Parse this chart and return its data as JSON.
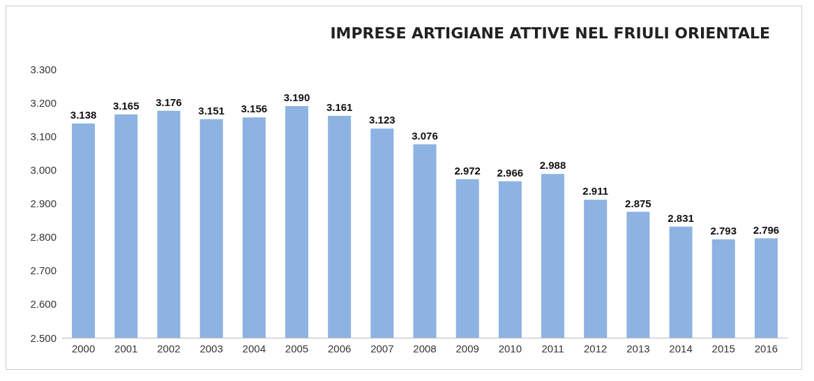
{
  "chart_data": {
    "type": "bar",
    "title": "IMPRESE ARTIGIANE ATTIVE NEL FRIULI ORIENTALE",
    "categories": [
      "2000",
      "2001",
      "2002",
      "2003",
      "2004",
      "2005",
      "2006",
      "2007",
      "2008",
      "2009",
      "2010",
      "2011",
      "2012",
      "2013",
      "2014",
      "2015",
      "2016"
    ],
    "values": [
      3138,
      3165,
      3176,
      3151,
      3156,
      3190,
      3161,
      3123,
      3076,
      2972,
      2966,
      2988,
      2911,
      2875,
      2831,
      2793,
      2796
    ],
    "value_labels": [
      "3.138",
      "3.165",
      "3.176",
      "3.151",
      "3.156",
      "3.190",
      "3.161",
      "3.123",
      "3.076",
      "2.972",
      "2.966",
      "2.988",
      "2.911",
      "2.875",
      "2.831",
      "2.793",
      "2.796"
    ],
    "color": "#8db3e2",
    "ylim": [
      2500,
      3300
    ],
    "yticks": [
      {
        "value": 2500,
        "label": "2.500"
      },
      {
        "value": 2600,
        "label": "2.600"
      },
      {
        "value": 2700,
        "label": "2.700"
      },
      {
        "value": 2800,
        "label": "2.800"
      },
      {
        "value": 2900,
        "label": "2.900"
      },
      {
        "value": 3000,
        "label": "3.000"
      },
      {
        "value": 3100,
        "label": "3.100"
      },
      {
        "value": 3200,
        "label": "3.200"
      },
      {
        "value": 3300,
        "label": "3.300"
      }
    ],
    "grid": false
  }
}
